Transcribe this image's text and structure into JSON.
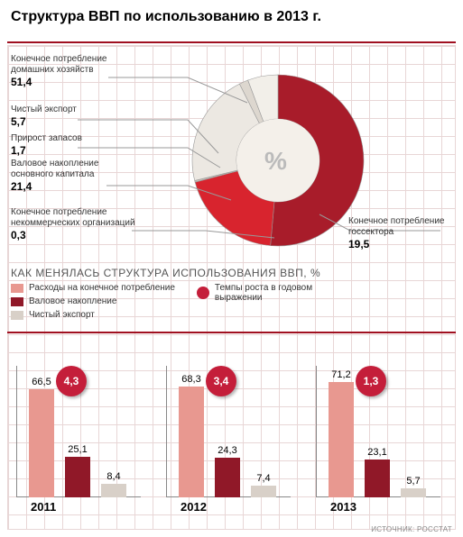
{
  "title": {
    "text": "Структура ВВП по использованию в 2013 г.",
    "fontsize": 20
  },
  "colors": {
    "accent": "#a01020",
    "bar1": "#e89890",
    "bar2": "#901828",
    "bar3": "#d8d0c8",
    "circle": "#c41e3a",
    "grid": "#e8d6d6"
  },
  "donut": {
    "center_symbol": "%",
    "slices": [
      {
        "label": "Конечное потребление домашних хозяйств",
        "value": 51.4,
        "color": "#a81c2a"
      },
      {
        "label": "Конечное потребление госсектора",
        "value": 19.5,
        "color": "#d8242e"
      },
      {
        "label": "Конечное потребление некоммерческих организаций",
        "value": 0.3,
        "color": "#c8c0b8"
      },
      {
        "label": "Валовое накопление основного капитала",
        "value": 21.4,
        "color": "#ece8e2"
      },
      {
        "label": "Прирост запасов",
        "value": 1.7,
        "color": "#ddd7cf"
      },
      {
        "label": "Чистый экспорт",
        "value": 5.7,
        "color": "#f2efe9"
      }
    ],
    "callouts": {
      "c0": {
        "label": "Конечное потребление домашних хозяйств",
        "value": "51,4"
      },
      "c1": {
        "label": "Чистый экспорт",
        "value": "5,7"
      },
      "c2": {
        "label": "Прирост запасов",
        "value": "1,7"
      },
      "c3": {
        "label": "Валовое накопление основного капитала",
        "value": "21,4"
      },
      "c4": {
        "label": "Конечное потребление некоммерческих организаций",
        "value": "0,3"
      },
      "c5": {
        "label": "Конечное потребление госсектора",
        "value": "19,5"
      }
    }
  },
  "section2": {
    "title": "КАК МЕНЯЛАСЬ СТРУКТУРА ИСПОЛЬЗОВАНИЯ ВВП, %",
    "legend": {
      "a": "Расходы на конечное потребление",
      "b": "Валовое накопление",
      "c": "Чистый экспорт",
      "d": "Темпы роста в годовом выражении"
    },
    "years": [
      {
        "year": "2011",
        "bars": [
          "66,5",
          "25,1",
          "8,4"
        ],
        "growth": "4,3",
        "heights": [
          120,
          45,
          15
        ]
      },
      {
        "year": "2012",
        "bars": [
          "68,3",
          "24,3",
          "7,4"
        ],
        "growth": "3,4",
        "heights": [
          123,
          44,
          13
        ]
      },
      {
        "year": "2013",
        "bars": [
          "71,2",
          "23,1",
          "5,7"
        ],
        "growth": "1,3",
        "heights": [
          128,
          42,
          10
        ]
      }
    ]
  },
  "source": "ИСТОЧНИК: РОССТАТ"
}
